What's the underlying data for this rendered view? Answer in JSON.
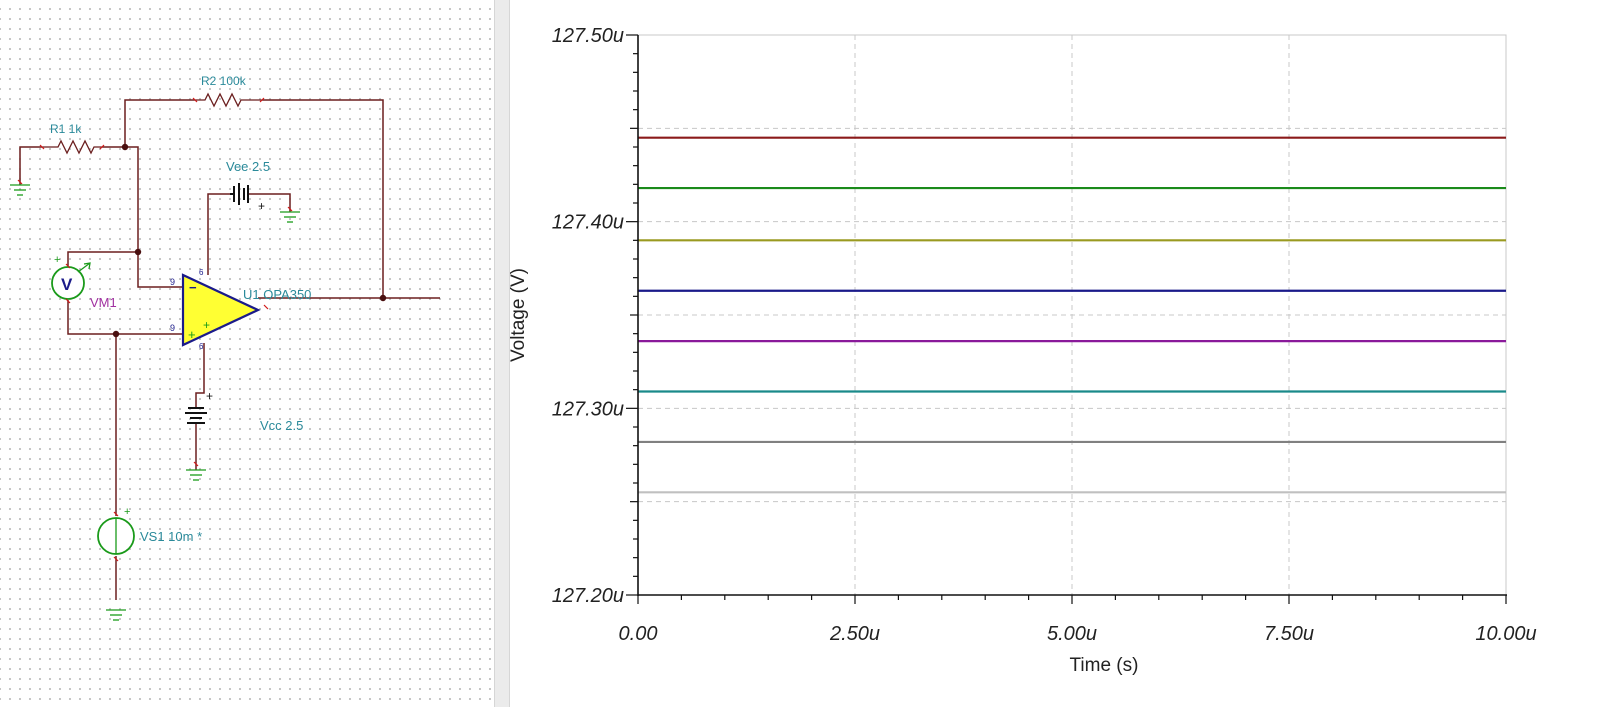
{
  "schematic": {
    "components": {
      "r2": "R2 100k",
      "r1": "R1 1k",
      "vee": "Vee 2.5",
      "vm_symbol": "V",
      "vm": "VM1",
      "u1": "U1 OPA350",
      "vcc": "Vcc 2.5",
      "vs1": "VS1 10m *"
    },
    "pin_numbers": {
      "inverting": "9",
      "noninverting": "9",
      "vcc_pin": "6",
      "vee_pin": "6"
    },
    "colors": {
      "wire": "#6b1f1f",
      "label": "#2a8a9a",
      "meter_label": "#a030a0",
      "opamp_fill": "#ffff33",
      "opamp_stroke": "#1b1b8a",
      "source": "#1a9a1a"
    }
  },
  "chart_data": {
    "type": "line",
    "xlabel": "Time (s)",
    "ylabel": "Voltage (V)",
    "xlim": [
      0,
      10
    ],
    "ylim": [
      127.2,
      127.5
    ],
    "x_ticks": [
      {
        "value": 0,
        "label": "0.00"
      },
      {
        "value": 2.5,
        "label": "2.50u"
      },
      {
        "value": 5,
        "label": "5.00u"
      },
      {
        "value": 7.5,
        "label": "7.50u"
      },
      {
        "value": 10,
        "label": "10.00u"
      }
    ],
    "y_ticks": [
      {
        "value": 127.2,
        "label": "127.20u"
      },
      {
        "value": 127.3,
        "label": "127.30u"
      },
      {
        "value": 127.4,
        "label": "127.40u"
      },
      {
        "value": 127.5,
        "label": "127.50u"
      }
    ],
    "grid": true,
    "series": [
      {
        "color": "#8b1a1a",
        "values": [
          127.445,
          127.445
        ]
      },
      {
        "color": "#1a8a1a",
        "values": [
          127.418,
          127.418
        ]
      },
      {
        "color": "#9a9a20",
        "values": [
          127.39,
          127.39
        ]
      },
      {
        "color": "#1a1a8a",
        "values": [
          127.363,
          127.363
        ]
      },
      {
        "color": "#8a1a9a",
        "values": [
          127.336,
          127.336
        ]
      },
      {
        "color": "#1a8a8a",
        "values": [
          127.309,
          127.309
        ]
      },
      {
        "color": "#808080",
        "values": [
          127.282,
          127.282
        ]
      },
      {
        "color": "#c0c0c0",
        "values": [
          127.255,
          127.255
        ]
      }
    ],
    "x": [
      0,
      10
    ]
  }
}
